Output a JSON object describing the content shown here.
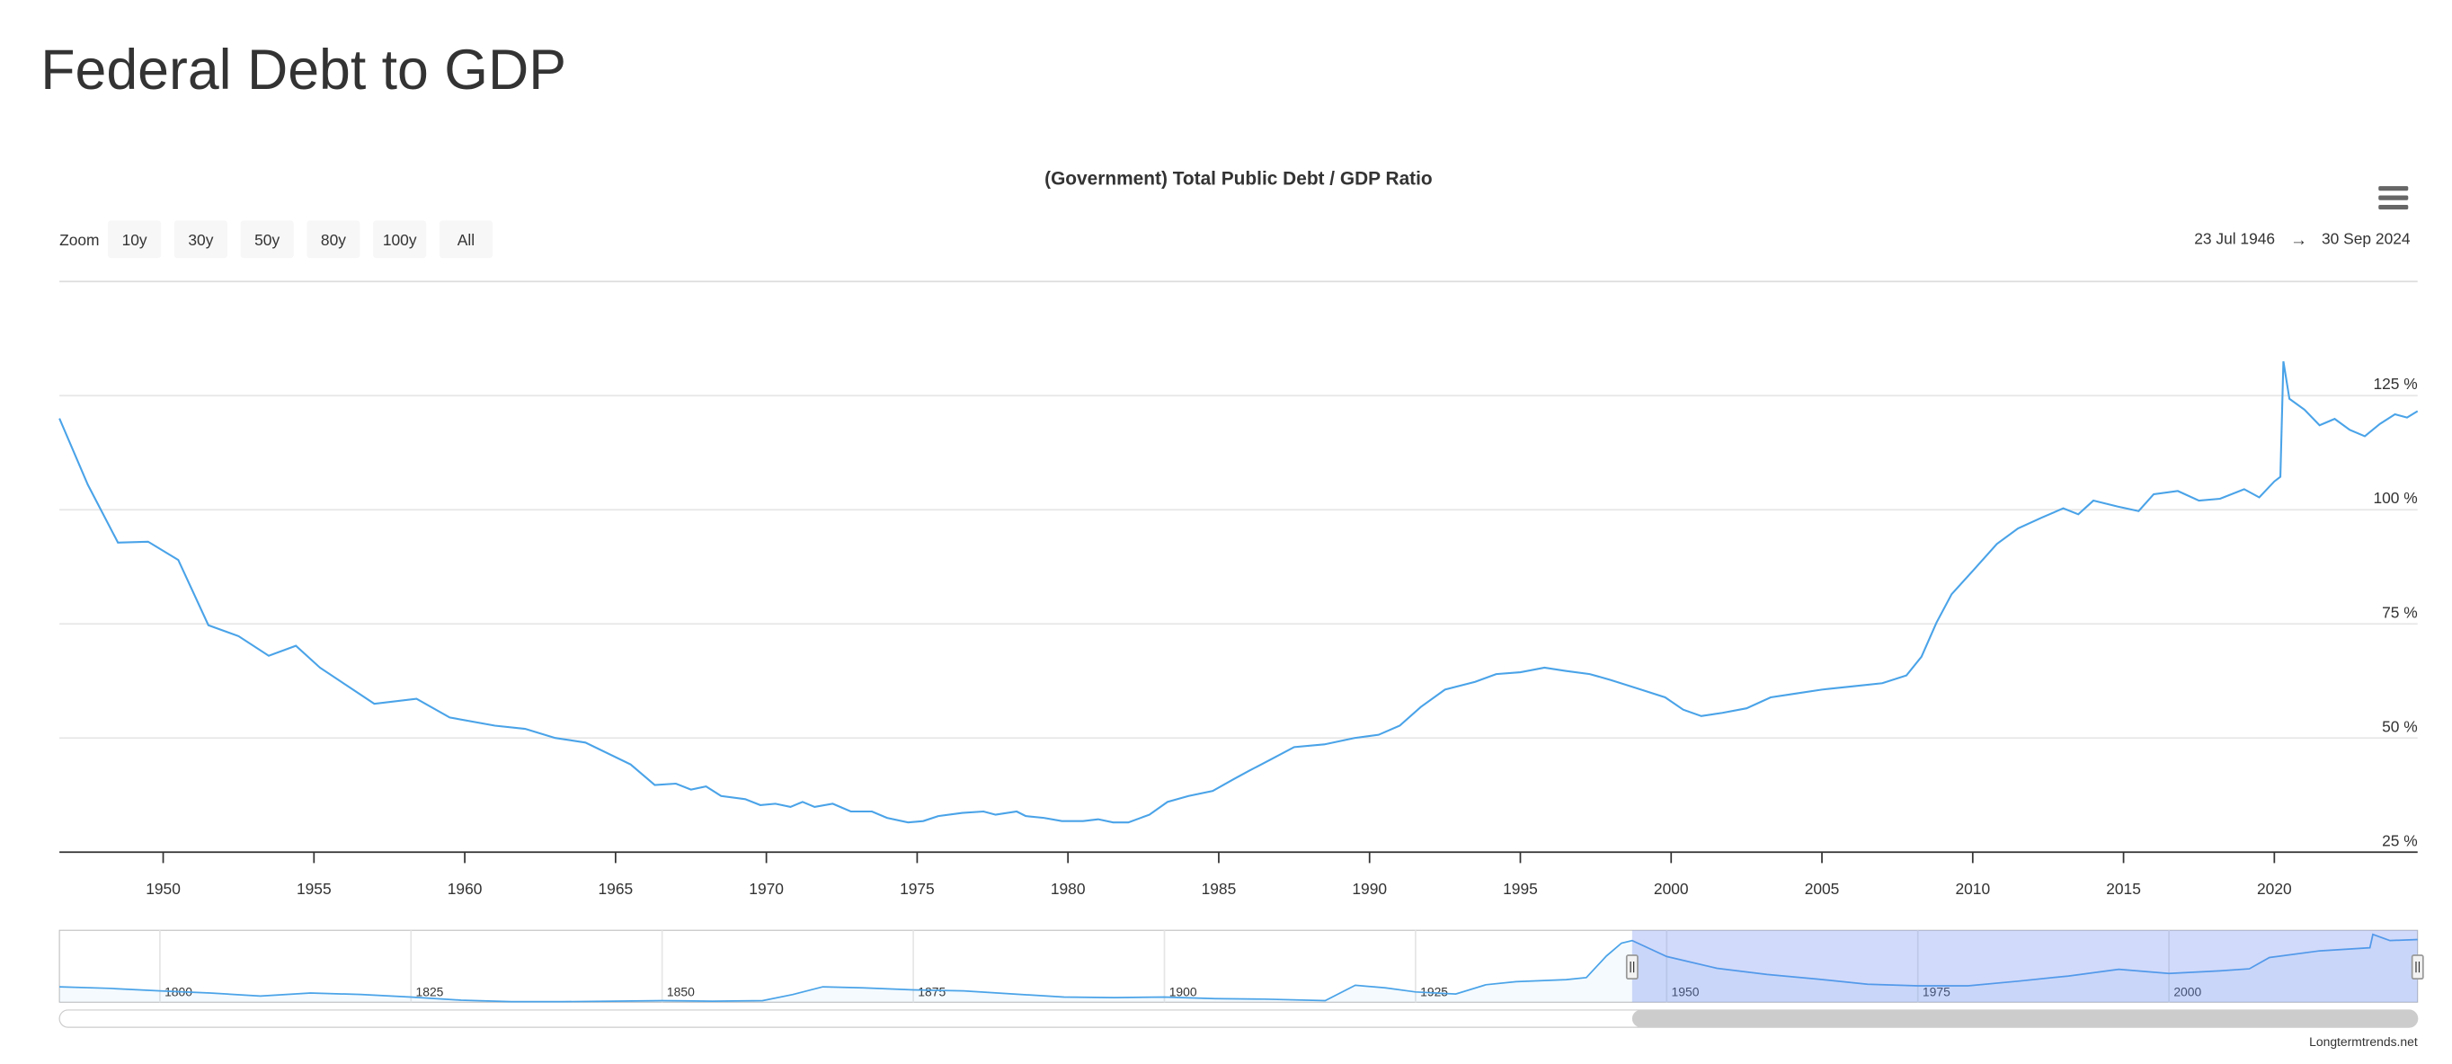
{
  "page_title": "Federal Debt to GDP",
  "credits": "Longtermtrends.net",
  "range_selector": {
    "label": "Zoom",
    "buttons": [
      "10y",
      "30y",
      "50y",
      "80y",
      "100y",
      "All"
    ],
    "from": "23 Jul 1946",
    "arrow": "→",
    "to": "30 Sep 2024"
  },
  "chart_data": {
    "type": "line",
    "title": "(Government) Total Public Debt / GDP Ratio",
    "color": "#4aa3e8",
    "x": [
      1946.56,
      1947.5,
      1948.5,
      1949.5,
      1950.5,
      1951.5,
      1952.5,
      1953.5,
      1954.4,
      1955.2,
      1957,
      1958.4,
      1959.5,
      1961,
      1962,
      1963,
      1964,
      1965.5,
      1966.3,
      1967,
      1967.5,
      1968,
      1968.5,
      1969.3,
      1969.8,
      1970.3,
      1970.8,
      1971.2,
      1971.6,
      1972.2,
      1972.8,
      1973.5,
      1974,
      1974.7,
      1975.2,
      1975.7,
      1976.5,
      1977.2,
      1977.6,
      1978.3,
      1978.6,
      1979.2,
      1979.8,
      1980.5,
      1981,
      1981.5,
      1982,
      1982.7,
      1983.3,
      1984,
      1984.8,
      1985.5,
      1986,
      1986.7,
      1987.5,
      1988.5,
      1989.5,
      1990.3,
      1991,
      1991.7,
      1992.5,
      1993.5,
      1994.2,
      1995,
      1995.8,
      1996.5,
      1997.3,
      1998,
      1999,
      1999.8,
      2000.4,
      2001,
      2001.7,
      2002.5,
      2003.3,
      2004,
      2005,
      2006,
      2007,
      2007.8,
      2008.3,
      2008.8,
      2009.3,
      2010,
      2010.8,
      2011.5,
      2012.3,
      2013,
      2013.5,
      2014,
      2014.8,
      2015.5,
      2016,
      2016.8,
      2017.5,
      2018.2,
      2019,
      2019.5,
      2020,
      2020.2,
      2020.3,
      2020.5,
      2021,
      2021.5,
      2022,
      2022.5,
      2023,
      2023.5,
      2024,
      2024.4,
      2024.75
    ],
    "values": [
      120,
      105.5,
      92.8,
      93,
      89,
      74.7,
      72.3,
      68,
      70.2,
      65.4,
      57.5,
      58.6,
      54.5,
      52.7,
      52,
      50,
      49,
      44.2,
      39.7,
      40,
      38.7,
      39.4,
      37.3,
      36.6,
      35.3,
      35.6,
      34.9,
      36,
      34.9,
      35.6,
      33.9,
      33.9,
      32.5,
      31.5,
      31.8,
      32.9,
      33.6,
      33.9,
      33.2,
      33.9,
      32.9,
      32.5,
      31.8,
      31.8,
      32.2,
      31.5,
      31.5,
      33.2,
      36,
      37.3,
      38.4,
      41,
      42.8,
      45.2,
      48,
      48.6,
      50,
      50.7,
      52.7,
      56.8,
      60.6,
      62.3,
      64,
      64.4,
      65.4,
      64.7,
      64,
      62.7,
      60.6,
      58.9,
      56.2,
      54.8,
      55.5,
      56.5,
      58.9,
      59.6,
      60.6,
      61.3,
      62,
      63.7,
      67.8,
      75.3,
      81.5,
      86.6,
      92.5,
      95.9,
      98.3,
      100.3,
      99,
      102,
      100.7,
      99.7,
      103.4,
      104.1,
      102,
      102.4,
      104.5,
      102.7,
      106.2,
      107.2,
      132.5,
      124.3,
      121.9,
      118.5,
      119.9,
      117.5,
      116.1,
      118.8,
      120.9,
      120.2,
      121.6
    ],
    "xlim": [
      1946.56,
      2024.75
    ],
    "xticks": [
      1950,
      1955,
      1960,
      1965,
      1970,
      1975,
      1980,
      1985,
      1990,
      1995,
      2000,
      2005,
      2010,
      2015,
      2020
    ],
    "ylim": [
      25,
      150
    ],
    "yticks": [
      {
        "value": 25,
        "label": "25 %"
      },
      {
        "value": 50,
        "label": "50 %"
      },
      {
        "value": 75,
        "label": "75 %"
      },
      {
        "value": 100,
        "label": "100 %"
      },
      {
        "value": 125,
        "label": "125 %"
      }
    ],
    "grid": true,
    "navigator": {
      "color": "#4aa3e8",
      "x": [
        1790,
        1795,
        1800,
        1805,
        1810,
        1815,
        1820,
        1825,
        1830,
        1835,
        1840,
        1845,
        1850,
        1855,
        1860,
        1863,
        1866,
        1870,
        1875,
        1880,
        1885,
        1890,
        1895,
        1900,
        1905,
        1910,
        1916,
        1919,
        1922,
        1925,
        1929,
        1932,
        1935,
        1940,
        1942,
        1944,
        1945.5,
        1946.56,
        1950,
        1955,
        1960,
        1965,
        1970,
        1975,
        1980,
        1985,
        1990,
        1995,
        2000,
        2005,
        2008,
        2010,
        2015,
        2020,
        2020.3,
        2022,
        2024.75
      ],
      "values": [
        30,
        27,
        22,
        18,
        12,
        18,
        15,
        10,
        4,
        1,
        1,
        2,
        3,
        2,
        3,
        15,
        30,
        28,
        24,
        22,
        16,
        10,
        9,
        10,
        7,
        6,
        3,
        33,
        28,
        20,
        16,
        34,
        40,
        44,
        48,
        90,
        115,
        120,
        89,
        66,
        54,
        45,
        35,
        32,
        32,
        41,
        51,
        64,
        56,
        61,
        65,
        87,
        100,
        106,
        132,
        120,
        122
      ],
      "xlim": [
        1790,
        2024.75
      ],
      "xticks": [
        1800,
        1825,
        1850,
        1875,
        1900,
        1925,
        1950,
        1975,
        2000
      ],
      "ylim": [
        0,
        140
      ]
    }
  }
}
